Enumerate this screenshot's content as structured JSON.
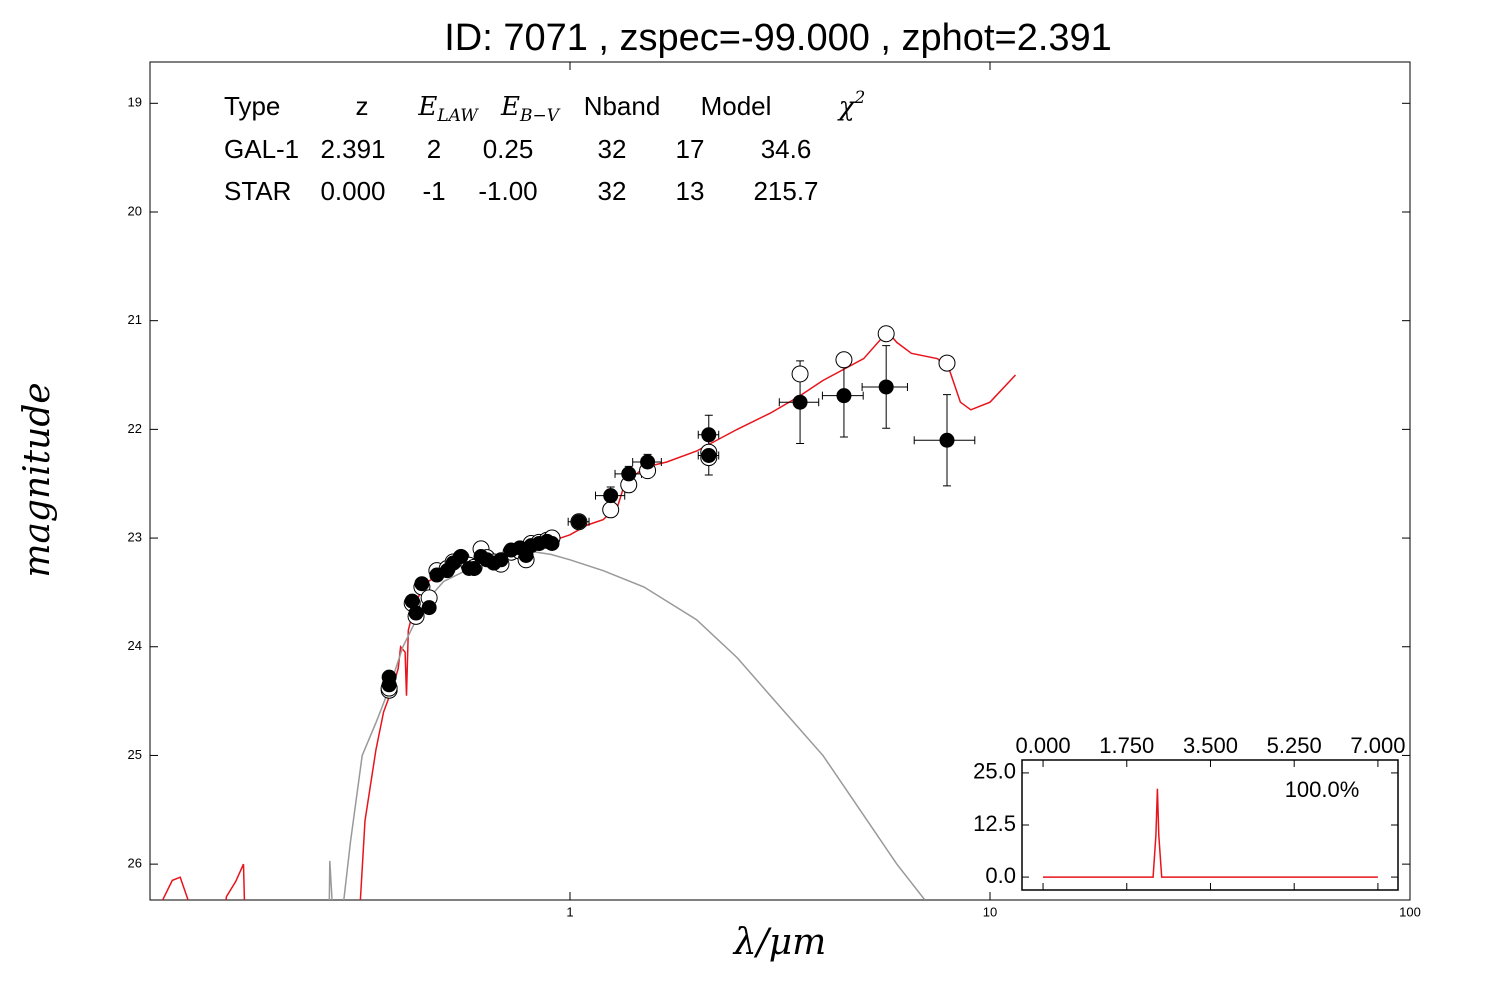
{
  "chart_data": [
    {
      "type": "sed",
      "title": "ID:  7071  , zspec=-99.000 , zphot=2.391",
      "xlabel": "λ/μm",
      "ylabel": "magnitude",
      "xscale": "log",
      "xlim": [
        0.1,
        100
      ],
      "xticks": [
        1,
        10,
        100
      ],
      "ylim": [
        18.62,
        26.33
      ],
      "y_inverted": true,
      "yticks": [
        19,
        20,
        21,
        22,
        23,
        24,
        25,
        26
      ],
      "series": [
        {
          "name": "GAL-1",
          "color": "#e8141c",
          "x": [
            0.105,
            0.113,
            0.118,
            0.125,
            0.135,
            null,
            0.15,
            0.152,
            0.16,
            0.167,
            0.168,
            0.172,
            null,
            0.315,
            0.325,
            0.345,
            0.36,
            0.372,
            0.38,
            0.39,
            0.395,
            0.405,
            0.408,
            0.412,
            0.42,
            0.43,
            0.445,
            0.46,
            0.48,
            0.5,
            0.55,
            0.6,
            0.65,
            0.7,
            0.8,
            0.9,
            1.0,
            1.1,
            1.2,
            1.3,
            1.35,
            1.4,
            1.5,
            1.7,
            2.0,
            2.5,
            3.0,
            3.5,
            4.0,
            5.0,
            5.7,
            6.0,
            6.5,
            7.5,
            8.0,
            8.5,
            9.0,
            10,
            11.5
          ],
          "values": [
            26.4,
            26.15,
            26.12,
            26.4,
            26.5,
            null,
            26.5,
            26.3,
            26.16,
            26.0,
            26.4,
            26.5,
            null,
            26.5,
            25.6,
            24.95,
            24.6,
            24.45,
            24.35,
            24.2,
            24.0,
            24.05,
            24.45,
            23.85,
            23.72,
            23.6,
            23.45,
            23.4,
            23.35,
            23.3,
            23.22,
            23.2,
            23.17,
            23.14,
            23.08,
            23.03,
            22.97,
            22.88,
            22.83,
            22.7,
            22.5,
            22.45,
            22.35,
            22.3,
            22.2,
            22.0,
            21.85,
            21.7,
            21.55,
            21.35,
            21.1,
            21.2,
            21.3,
            21.35,
            21.45,
            21.75,
            21.82,
            21.75,
            21.5
          ]
        },
        {
          "name": "STAR",
          "color": "#999999",
          "x": [
            0.267,
            0.268,
            0.272,
            0.282,
            0.285,
            0.29,
            0.3,
            0.32,
            0.345,
            0.37,
            0.4,
            0.45,
            0.5,
            0.6,
            0.7,
            0.8,
            0.9,
            1.0,
            1.2,
            1.5,
            2.0,
            2.5,
            3.0,
            4.0,
            5.0,
            6.0,
            7.0
          ],
          "values": [
            26.5,
            25.97,
            26.4,
            26.4,
            26.5,
            26.3,
            25.8,
            25.0,
            24.7,
            24.4,
            24.0,
            23.6,
            23.4,
            23.25,
            23.17,
            23.12,
            23.15,
            23.2,
            23.3,
            23.45,
            23.75,
            24.1,
            24.45,
            25.0,
            25.55,
            26.0,
            26.33
          ]
        }
      ],
      "observed": {
        "x": [
          0.371,
          0.371,
          0.421,
          0.43,
          0.444,
          0.462,
          0.482,
          0.51,
          0.527,
          0.55,
          0.575,
          0.591,
          0.614,
          0.634,
          0.659,
          0.685,
          0.724,
          0.76,
          0.786,
          0.808,
          0.844,
          0.882,
          0.906,
          1.05,
          1.25,
          1.38,
          1.53,
          2.14,
          2.14,
          3.53,
          4.49,
          5.66,
          7.9
        ],
        "values": [
          24.28,
          24.35,
          23.58,
          23.69,
          23.42,
          23.64,
          23.34,
          23.3,
          23.23,
          23.17,
          23.28,
          23.28,
          23.17,
          23.2,
          23.23,
          23.2,
          23.11,
          23.09,
          23.16,
          23.07,
          23.05,
          23.03,
          23.05,
          22.85,
          22.61,
          22.41,
          22.3,
          22.05,
          22.24,
          21.75,
          21.69,
          21.61,
          22.1
        ],
        "yerr": [
          0.05,
          0.05,
          0.05,
          0.05,
          0.05,
          0.05,
          0.05,
          0.05,
          0.05,
          0.05,
          0.05,
          0.05,
          0.05,
          0.05,
          0.05,
          0.05,
          0.05,
          0.05,
          0.05,
          0.05,
          0.05,
          0.05,
          0.05,
          0.05,
          0.08,
          0.07,
          0.07,
          0.18,
          0.18,
          0.38,
          0.38,
          0.38,
          0.42
        ],
        "xerr": [
          0.01,
          0.01,
          0.012,
          0.012,
          0.012,
          0.013,
          0.013,
          0.015,
          0.014,
          0.015,
          0.015,
          0.016,
          0.016,
          0.017,
          0.018,
          0.018,
          0.02,
          0.02,
          0.02,
          0.021,
          0.022,
          0.023,
          0.024,
          0.06,
          0.1,
          0.1,
          0.12,
          0.12,
          0.12,
          0.38,
          0.5,
          0.7,
          1.3
        ]
      },
      "model_points": {
        "values": [
          24.4,
          24.38,
          23.6,
          23.72,
          23.45,
          23.55,
          23.3,
          23.28,
          23.22,
          23.18,
          23.25,
          23.27,
          23.1,
          23.18,
          23.22,
          23.24,
          23.13,
          23.12,
          23.2,
          23.05,
          23.04,
          23.02,
          23.0,
          22.85,
          22.74,
          22.51,
          22.38,
          22.21,
          22.26,
          21.49,
          21.36,
          21.12,
          21.39
        ]
      },
      "table": {
        "columns": [
          {
            "text": "Type"
          },
          {
            "text": "z"
          },
          {
            "text": "E",
            "sub": "LAW"
          },
          {
            "text": "E",
            "sub": "B−V"
          },
          {
            "text": "Nband"
          },
          {
            "text": "Model"
          },
          {
            "text": "χ",
            "sup": "2"
          }
        ],
        "rows": [
          [
            "2.391",
            "2",
            "0.25",
            "32",
            "17",
            "34.6"
          ],
          [
            "0.000",
            "-1",
            "-1.00",
            "32",
            "13",
            "215.7"
          ]
        ]
      }
    },
    {
      "type": "line",
      "xlim": [
        -0.44,
        7.42
      ],
      "ylim": [
        -3.1,
        28.1
      ],
      "xticks": [
        {
          "value": 0,
          "label": "0.000"
        },
        {
          "value": 1.75,
          "label": "1.750"
        },
        {
          "value": 3.5,
          "label": "3.500"
        },
        {
          "value": 5.25,
          "label": "5.250"
        },
        {
          "value": 7,
          "label": "7.000"
        }
      ],
      "yticks": [
        {
          "value": 0,
          "label": "0.0"
        },
        {
          "value": 12.5,
          "label": "12.5"
        },
        {
          "value": 25,
          "label": "25.0"
        }
      ],
      "annotation": "100.0%",
      "color": "#e8141c",
      "x": [
        0,
        2.3,
        2.36,
        2.39,
        2.42,
        2.48,
        7
      ],
      "values": [
        0,
        0,
        10,
        21.2,
        10,
        0,
        0
      ]
    }
  ]
}
